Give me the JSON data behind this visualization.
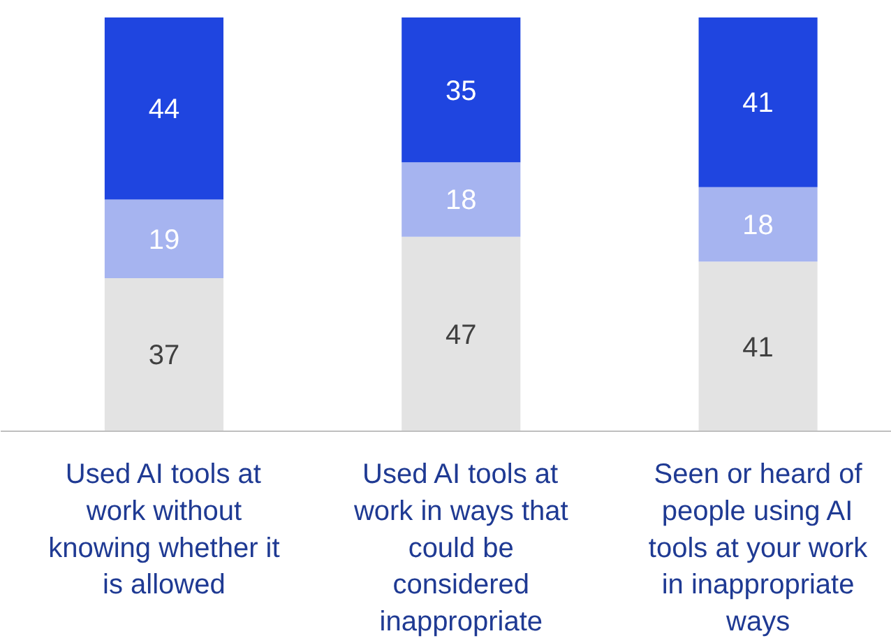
{
  "chart_data": {
    "type": "bar",
    "stacked": true,
    "data_labels": true,
    "tick_labels": "x",
    "categories": [
      "Used AI tools at work without knowing whether it is allowed",
      "Used AI tools at work in ways that could be considered inappropriate",
      "Seen or heard of people using AI tools at your work in inappropriate ways"
    ],
    "ylim": [
      0,
      100
    ],
    "series": [
      {
        "color": "#e3e3e3",
        "values": [
          37,
          47,
          41
        ]
      },
      {
        "color": "#a6b4f0",
        "values": [
          19,
          18,
          18
        ]
      },
      {
        "color": "#1f45e0",
        "values": [
          44,
          35,
          41
        ]
      }
    ]
  }
}
